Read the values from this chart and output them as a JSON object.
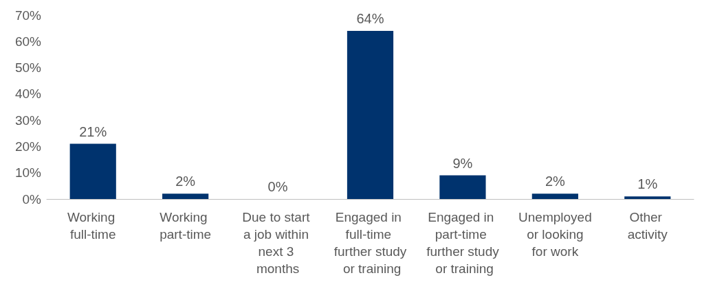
{
  "chart_data": {
    "type": "bar",
    "categories": [
      "Working full-time",
      "Working part-time",
      "Due to start a job within next 3 months",
      "Engaged in full-time further study or training",
      "Engaged in part-time further study or training",
      "Unemployed or looking for work",
      "Other activity"
    ],
    "values": [
      21,
      2,
      0,
      64,
      9,
      2,
      1
    ],
    "value_labels": [
      "21%",
      "2%",
      "0%",
      "64%",
      "9%",
      "2%",
      "1%"
    ],
    "color": "#00336e",
    "ylim": [
      0,
      70
    ],
    "yticks": [
      {
        "value": 0,
        "label": "0%"
      },
      {
        "value": 10,
        "label": "10%"
      },
      {
        "value": 20,
        "label": "20%"
      },
      {
        "value": 30,
        "label": "30%"
      },
      {
        "value": 40,
        "label": "40%"
      },
      {
        "value": 50,
        "label": "50%"
      },
      {
        "value": 60,
        "label": "60%"
      },
      {
        "value": 70,
        "label": "70%"
      }
    ],
    "grid": false
  }
}
